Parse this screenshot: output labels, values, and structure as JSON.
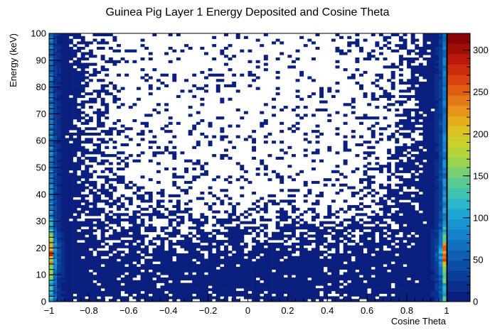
{
  "chart_data": {
    "type": "heatmap",
    "title": "Guinea Pig Layer 1 Energy Deposited and Cosine Theta",
    "xlabel": "Cosine Theta",
    "ylabel": "Energy (keV)",
    "xlim": [
      -1,
      1
    ],
    "ylim": [
      0,
      100
    ],
    "x_ticks": [
      -1,
      -0.8,
      -0.6,
      -0.4,
      -0.2,
      0,
      0.2,
      0.4,
      0.6,
      0.8,
      1
    ],
    "x_tick_labels": [
      "−1",
      "−0.8",
      "−0.6",
      "−0.4",
      "−0.2",
      "0",
      "0.2",
      "0.4",
      "0.6",
      "0.8",
      "1"
    ],
    "y_ticks": [
      0,
      10,
      20,
      30,
      40,
      50,
      60,
      70,
      80,
      90,
      100
    ],
    "y_tick_labels": [
      "0",
      "10",
      "20",
      "30",
      "40",
      "50",
      "60",
      "70",
      "80",
      "90",
      "100"
    ],
    "z_range": [
      0,
      320
    ],
    "z_ticks": [
      0,
      50,
      100,
      150,
      200,
      250,
      300
    ],
    "z_tick_labels": [
      "0",
      "50",
      "100",
      "150",
      "200",
      "250",
      "300"
    ],
    "bins": {
      "x": 100,
      "y": 100
    },
    "empty_bin_color": "#ffffff",
    "palette": [
      "#0b1f7e",
      "#0a2f8c",
      "#0a3e99",
      "#0b4ea6",
      "#0f5fb2",
      "#1370bf",
      "#1682c9",
      "#1994d2",
      "#1ea6d4",
      "#2ab7c9",
      "#3fc2b1",
      "#59ca95",
      "#78d074",
      "#98d451",
      "#b4d43a",
      "#ccd02b",
      "#dcc322",
      "#e6ae1e",
      "#e8941b",
      "#e57918",
      "#e05d14",
      "#d84311",
      "#cc2b0d",
      "#b8190b",
      "#a00e08",
      "#8a0406"
    ],
    "series": [
      {
        "name": "",
        "description_points": [
          {
            "x": -0.98,
            "y": 18,
            "z": 320
          },
          {
            "x": -0.96,
            "y": 20,
            "z": 230
          },
          {
            "x": -0.94,
            "y": 16,
            "z": 130
          },
          {
            "x": -0.98,
            "y": 30,
            "z": 120
          },
          {
            "x": -0.98,
            "y": 45,
            "z": 60
          },
          {
            "x": -0.97,
            "y": 80,
            "z": 15
          },
          {
            "x": 0.98,
            "y": 18,
            "z": 320
          },
          {
            "x": 0.96,
            "y": 20,
            "z": 230
          },
          {
            "x": 0.94,
            "y": 16,
            "z": 130
          },
          {
            "x": 0.98,
            "y": 30,
            "z": 120
          },
          {
            "x": 0.98,
            "y": 45,
            "z": 60
          },
          {
            "x": 0.97,
            "y": 80,
            "z": 15
          },
          {
            "x": -0.7,
            "y": 10,
            "z": 4
          },
          {
            "x": 0.7,
            "y": 10,
            "z": 4
          },
          {
            "x": 0.0,
            "y": 25,
            "z": 2
          },
          {
            "x": 0.0,
            "y": 70,
            "z": 1
          }
        ]
      }
    ]
  }
}
